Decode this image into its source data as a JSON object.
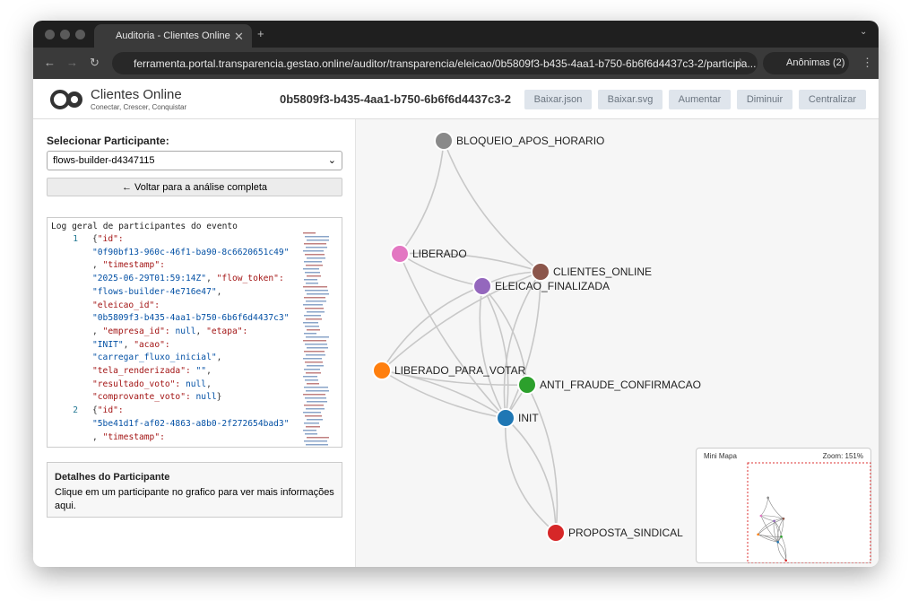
{
  "browser": {
    "tab_title": "Auditoria - Clientes Online",
    "url": "ferramenta.portal.transparencia.gestao.online/auditor/transparencia/eleicao/0b5809f3-b435-4aa1-b750-6b6f6d4437c3-2/participa...",
    "profile": "Anônimas (2)"
  },
  "header": {
    "brand": "Clientes Online",
    "tagline": "Conectar, Crescer, Conquistar",
    "event_id": "0b5809f3-b435-4aa1-b750-6b6f6d4437c3-2",
    "buttons": [
      "Baixar.json",
      "Baixar.svg",
      "Aumentar",
      "Diminuir",
      "Centralizar"
    ]
  },
  "sidebar": {
    "select_label": "Selecionar Participante:",
    "selected": "flows-builder-d4347115",
    "back_button": "← Voltar para a análise completa",
    "log": {
      "title": "Log geral de participantes do evento",
      "entries": [
        {
          "number": "1",
          "lines": [
            "{\"id\":",
            "\"0f90bf13-960c-46f1-ba90-8c6620651c49\"",
            ", \"timestamp\":",
            "\"2025-06-29T01:59:14Z\", \"flow_token\":",
            "\"flows-builder-4e716e47\",",
            "\"eleicao_id\":",
            "\"0b5809f3-b435-4aa1-b750-6b6f6d4437c3\"",
            ", \"empresa_id\": null, \"etapa\":",
            "\"INIT\", \"acao\":",
            "\"carregar_fluxo_inicial\",",
            "\"tela_renderizada\": \"\",",
            "\"resultado_voto\": null,",
            "\"comprovante_voto\": null}"
          ]
        },
        {
          "number": "2",
          "lines": [
            "{\"id\":",
            "\"5be41d1f-af02-4863-a8b0-2f272654bad3\"",
            ", \"timestamp\":"
          ]
        }
      ]
    },
    "details": {
      "title": "Detalhes do Participante",
      "text": "Clique em um participante no grafico para ver mais informações aqui."
    }
  },
  "graph": {
    "nodes": [
      {
        "label": "BLOQUEIO_APOS_HORARIO",
        "color": "#8a8a8a"
      },
      {
        "label": "LIBERADO",
        "color": "#e377c2"
      },
      {
        "label": "CLIENTES_ONLINE",
        "color": "#8c564b"
      },
      {
        "label": "ELEICAO_FINALIZADA",
        "color": "#9467bd"
      },
      {
        "label": "LIBERADO_PARA_VOTAR",
        "color": "#ff7f0e"
      },
      {
        "label": "ANTI_FRAUDE_CONFIRMACAO",
        "color": "#2ca02c"
      },
      {
        "label": "INIT",
        "color": "#1f77b4"
      },
      {
        "label": "PROPOSTA_SINDICAL",
        "color": "#d62728"
      }
    ],
    "minimap": {
      "title": "Mini Mapa",
      "zoom": "Zoom: 151%"
    }
  }
}
